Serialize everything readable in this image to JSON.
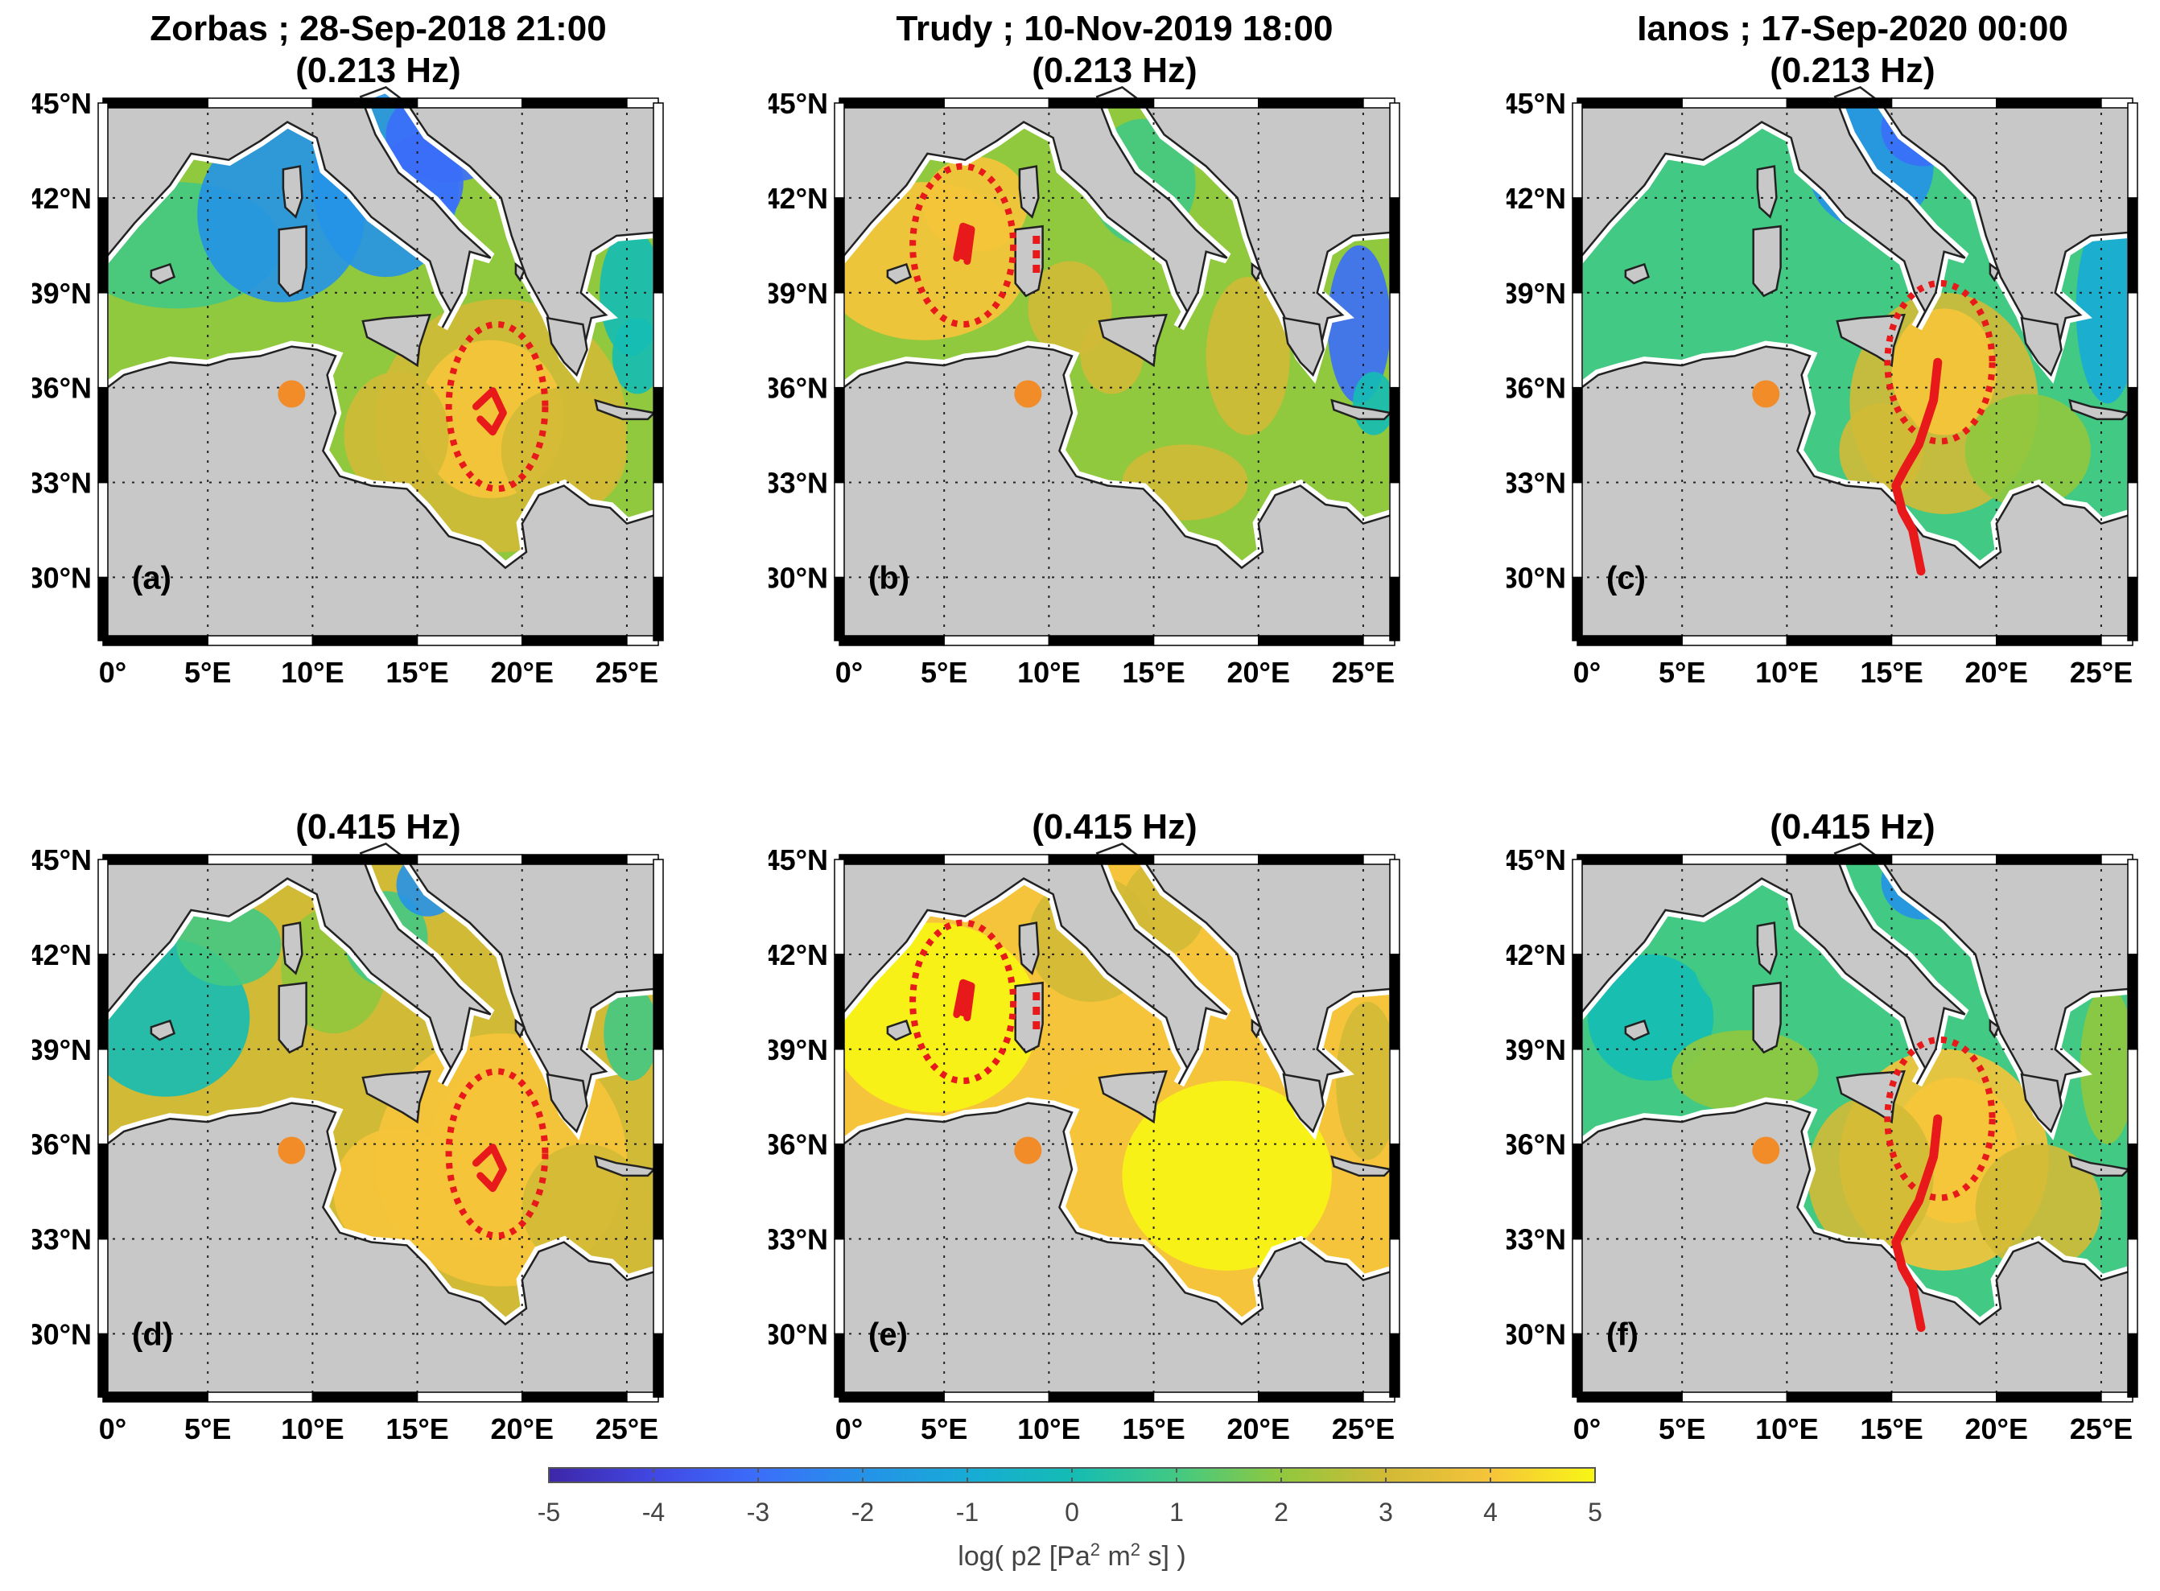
{
  "panels": [
    {
      "id": "a",
      "label": "(a)",
      "title": "Zorbas ; 28-Sep-2018 21:00",
      "freq": "(0.213 Hz)",
      "field": "zorbas_213",
      "circle": {
        "lon": 18.8,
        "lat": 35.4,
        "rx": 2.3,
        "ry": 2.6
      },
      "track": "zorbas",
      "mark": "chev"
    },
    {
      "id": "b",
      "label": "(b)",
      "title": "Trudy ; 10-Nov-2019 18:00",
      "freq": "(0.213 Hz)",
      "field": "trudy_213",
      "circle": {
        "lon": 5.9,
        "lat": 40.5,
        "rx": 2.4,
        "ry": 2.5
      },
      "track": "trudy",
      "mark": "blob"
    },
    {
      "id": "c",
      "label": "(c)",
      "title": "Ianos ; 17-Sep-2020 00:00",
      "freq": "(0.213 Hz)",
      "field": "ianos_213",
      "circle": {
        "lon": 17.3,
        "lat": 36.8,
        "rx": 2.5,
        "ry": 2.5
      },
      "track": "ianos",
      "mark": "line"
    },
    {
      "id": "d",
      "label": "(d)",
      "title": "",
      "freq": "(0.415 Hz)",
      "field": "zorbas_415",
      "circle": {
        "lon": 18.8,
        "lat": 35.7,
        "rx": 2.3,
        "ry": 2.6
      },
      "track": "zorbas",
      "mark": "chev"
    },
    {
      "id": "e",
      "label": "(e)",
      "title": "",
      "freq": "(0.415 Hz)",
      "field": "trudy_415",
      "circle": {
        "lon": 5.9,
        "lat": 40.5,
        "rx": 2.4,
        "ry": 2.5
      },
      "track": "trudy",
      "mark": "blob"
    },
    {
      "id": "f",
      "label": "(f)",
      "title": "",
      "freq": "(0.415 Hz)",
      "field": "ianos_415",
      "circle": {
        "lon": 17.3,
        "lat": 36.8,
        "rx": 2.5,
        "ry": 2.5
      },
      "track": "ianos",
      "mark": "line"
    }
  ],
  "axes": {
    "lon_ticks": [
      0,
      5,
      10,
      15,
      20,
      25
    ],
    "lon_labels": [
      "0°",
      "5°E",
      "10°E",
      "15°E",
      "20°E",
      "25°E"
    ],
    "lat_ticks": [
      30,
      33,
      36,
      39,
      42,
      45
    ],
    "lat_labels": [
      "30°N",
      "33°N",
      "36°N",
      "39°N",
      "42°N",
      "45°N"
    ],
    "lon_range": [
      0,
      26.5
    ],
    "lat_range": [
      28,
      45
    ]
  },
  "station": {
    "lon": 9.0,
    "lat": 35.8,
    "color": "#f28c28"
  },
  "colors": {
    "land": "#c8c8c8",
    "track": "#e8191a",
    "circle": "#e8191a"
  },
  "colorbar": {
    "min": -5,
    "max": 5,
    "ticks": [
      "-5",
      "-4",
      "-3",
      "-2",
      "-1",
      "0",
      "1",
      "2",
      "3",
      "4",
      "5"
    ],
    "label_prefix": "log( p2 [Pa",
    "label_sup1": "2",
    "label_mid": " m",
    "label_sup2": "2",
    "label_suffix": " s] )"
  },
  "chart_data": {
    "type": "heatmap",
    "title": "",
    "xlabel": "",
    "ylabel": "",
    "xlim": [
      0,
      26.5
    ],
    "ylim": [
      28,
      45
    ],
    "colorbar_range": [
      -5,
      5
    ],
    "colorbar_label": "log( p2 [Pa2 m2 s] )",
    "panels": [
      {
        "label": "(a)",
        "storm": "Zorbas",
        "time": "28-Sep-2018 21:00",
        "freq": "0.213 Hz",
        "typical_value_near_storm": 3.5,
        "typical_value_western_basin": -2.5
      },
      {
        "label": "(b)",
        "storm": "Trudy",
        "time": "10-Nov-2019 18:00",
        "freq": "0.213 Hz",
        "typical_value_near_storm": 4.5,
        "typical_value_eastern_basin": 1.5
      },
      {
        "label": "(c)",
        "storm": "Ianos",
        "time": "17-Sep-2020 00:00",
        "freq": "0.213 Hz",
        "typical_value_near_storm": 4.0,
        "typical_value_western_basin": 0.5
      },
      {
        "label": "(d)",
        "storm": "Zorbas",
        "freq": "0.415 Hz",
        "typical_value_near_storm": 4.0,
        "typical_value_western_basin": 0.0
      },
      {
        "label": "(e)",
        "storm": "Trudy",
        "freq": "0.415 Hz",
        "typical_value_near_storm": 5.0,
        "typical_value_eastern_basin": 4.5
      },
      {
        "label": "(f)",
        "storm": "Ianos",
        "freq": "0.415 Hz",
        "typical_value_near_storm": 4.0,
        "typical_value_western_basin": 0.5
      }
    ]
  }
}
